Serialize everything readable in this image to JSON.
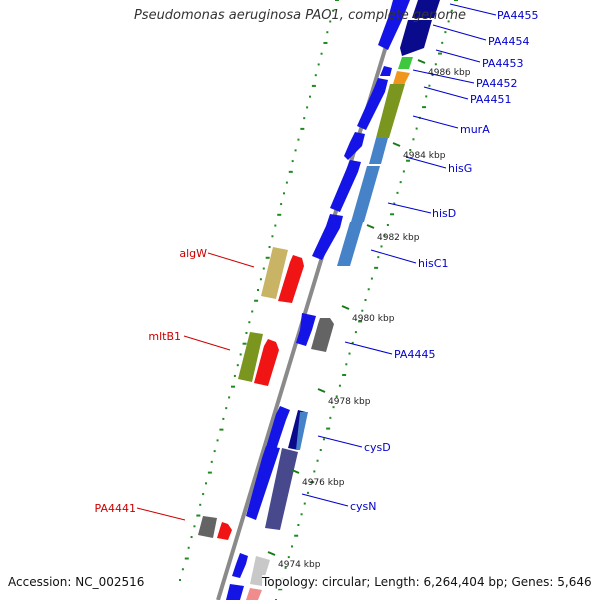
{
  "header": {
    "title": "Pseudomonas aeruginosa PAO1, complete genome"
  },
  "footer": {
    "accession": "Accession: NC_002516",
    "summary": "Topology: circular; Length: 6,264,404 bp; Genes: 5,646"
  },
  "colors": {
    "backbone": "#8a8a8a",
    "dots": "#1f8a1f",
    "tick": "#1a7a1a",
    "right_label": "#0000cc",
    "left_label": "#cc0000"
  },
  "ruler_ticks": [
    {
      "label": "4986 kbp"
    },
    {
      "label": "4984 kbp"
    },
    {
      "label": "4982 kbp"
    },
    {
      "label": "4980 kbp"
    },
    {
      "label": "4978 kbp"
    },
    {
      "label": "4976 kbp"
    },
    {
      "label": "4974 kbp"
    }
  ],
  "right_gene_labels": [
    "PA4455",
    "PA4454",
    "PA4453",
    "PA4452",
    "PA4451",
    "murA",
    "hisG",
    "hisD",
    "hisC1",
    "PA4445",
    "cysD",
    "cysN"
  ],
  "left_gene_labels": [
    "algW",
    "mltB1",
    "PA4441"
  ],
  "feature_colors": {
    "cds_blue": "#1414e6",
    "navy": "#0a0a8c",
    "green": "#3ec83e",
    "orange": "#f0961e",
    "olive": "#7a961e",
    "steel": "#4682c8",
    "khaki": "#c8b464",
    "red": "#f01414",
    "gray": "#646464",
    "slate": "#48488c",
    "light_gray": "#c8c8c8",
    "pink": "#f08c8c"
  }
}
